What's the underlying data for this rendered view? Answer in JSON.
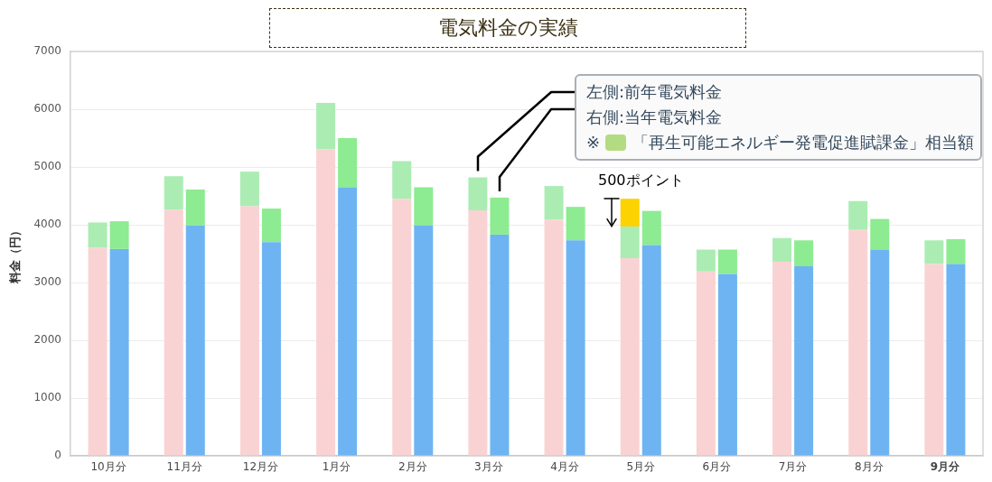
{
  "chart_data": {
    "type": "bar",
    "title": "電気料金の実績",
    "ylabel": "料金（円）",
    "categories": [
      null,
      null,
      null,
      "10月分",
      null,
      null,
      null,
      null,
      null,
      null,
      "11月分",
      null,
      null,
      null,
      null,
      null,
      null,
      "12月分",
      null,
      null,
      null,
      null,
      null,
      null,
      "1月分",
      null,
      null,
      null,
      null,
      null,
      null,
      "2月分",
      null,
      null,
      null,
      null,
      null,
      null,
      "3月分",
      null,
      null,
      null,
      null,
      null,
      null,
      "4月分",
      null,
      null,
      null,
      null,
      null,
      null,
      "5月分",
      null,
      null,
      null,
      null,
      null,
      null,
      "6月分",
      null,
      null,
      null,
      null,
      null,
      null,
      "7月分",
      null,
      null,
      null,
      null,
      null,
      null,
      "8月分",
      null,
      null,
      null,
      null,
      null,
      null,
      "9月分",
      null,
      null,
      null
    ],
    "stacked": true,
    "series": [
      {
        "color": "#f9d3d3",
        "values": [
          null,
          null,
          3600,
          null,
          null,
          null,
          null,
          null,
          null,
          4260,
          null,
          null,
          null,
          null,
          null,
          null,
          4320,
          null,
          null,
          null,
          null,
          null,
          null,
          5310,
          null,
          null,
          null,
          null,
          null,
          null,
          4450,
          null,
          null,
          null,
          null,
          null,
          null,
          4250,
          null,
          null,
          null,
          null,
          null,
          null,
          4090,
          null,
          null,
          null,
          null,
          null,
          null,
          3420,
          null,
          null,
          null,
          null,
          null,
          null,
          3190,
          null,
          null,
          null,
          null,
          null,
          null,
          3360,
          null,
          null,
          null,
          null,
          null,
          null,
          3910,
          null,
          null,
          null,
          null,
          null,
          null,
          3320,
          null,
          null,
          null,
          null
        ]
      },
      {
        "color": "#abecb3",
        "values": [
          null,
          null,
          440,
          null,
          null,
          null,
          null,
          null,
          null,
          580,
          null,
          null,
          null,
          null,
          null,
          null,
          600,
          null,
          null,
          null,
          null,
          null,
          null,
          800,
          null,
          null,
          null,
          null,
          null,
          null,
          650,
          null,
          null,
          null,
          null,
          null,
          null,
          570,
          null,
          null,
          null,
          null,
          null,
          null,
          580,
          null,
          null,
          null,
          null,
          null,
          null,
          550,
          null,
          null,
          null,
          null,
          null,
          null,
          380,
          null,
          null,
          null,
          null,
          null,
          null,
          410,
          null,
          null,
          null,
          null,
          null,
          null,
          500,
          null,
          null,
          null,
          null,
          null,
          null,
          410,
          null,
          null,
          null,
          null
        ]
      },
      {
        "color": "#fcd200",
        "values": [
          null,
          null,
          null,
          null,
          null,
          null,
          null,
          null,
          null,
          null,
          null,
          null,
          null,
          null,
          null,
          null,
          null,
          null,
          null,
          null,
          null,
          null,
          null,
          null,
          null,
          null,
          null,
          null,
          null,
          null,
          null,
          null,
          null,
          null,
          null,
          null,
          null,
          null,
          null,
          null,
          null,
          null,
          null,
          null,
          null,
          null,
          null,
          null,
          null,
          null,
          null,
          480,
          null,
          null,
          null,
          null,
          null,
          null,
          null,
          null,
          null,
          null,
          null,
          null,
          null,
          null,
          null,
          null,
          null,
          null,
          null,
          null,
          null,
          null,
          null,
          null,
          null,
          null,
          null,
          null,
          null,
          null,
          null,
          null
        ]
      },
      {
        "color": "#6eb4f2",
        "values": [
          null,
          null,
          null,
          null,
          3580,
          null,
          null,
          null,
          null,
          null,
          null,
          3990,
          null,
          null,
          null,
          null,
          null,
          null,
          3700,
          null,
          null,
          null,
          null,
          null,
          null,
          4650,
          null,
          null,
          null,
          null,
          null,
          null,
          3990,
          null,
          null,
          null,
          null,
          null,
          null,
          3830,
          null,
          null,
          null,
          null,
          null,
          null,
          3730,
          null,
          null,
          null,
          null,
          null,
          null,
          3650,
          null,
          null,
          null,
          null,
          null,
          null,
          3150,
          null,
          null,
          null,
          null,
          null,
          null,
          3280,
          null,
          null,
          null,
          null,
          null,
          null,
          3570,
          null,
          null,
          null,
          null,
          null,
          null,
          3320,
          null,
          null
        ]
      },
      {
        "color": "#8deb91",
        "values": [
          null,
          null,
          null,
          null,
          480,
          null,
          null,
          null,
          null,
          null,
          null,
          620,
          null,
          null,
          null,
          null,
          null,
          null,
          580,
          null,
          null,
          null,
          null,
          null,
          null,
          850,
          null,
          null,
          null,
          null,
          null,
          null,
          660,
          null,
          null,
          null,
          null,
          null,
          null,
          640,
          null,
          null,
          null,
          null,
          null,
          null,
          580,
          null,
          null,
          null,
          null,
          null,
          null,
          590,
          null,
          null,
          null,
          null,
          null,
          null,
          420,
          null,
          null,
          null,
          null,
          null,
          null,
          450,
          null,
          null,
          null,
          null,
          null,
          null,
          530,
          null,
          null,
          null,
          null,
          null,
          null,
          430,
          null,
          null
        ]
      }
    ],
    "ylim": [
      0,
      7000
    ],
    "yticks": [
      0,
      1000,
      2000,
      3000,
      4000,
      5000,
      6000,
      7000
    ],
    "grid": "y",
    "annotations": [
      "左側:前年電気料金",
      "右側:当年電気料金",
      "※",
      "「再生可能エネルギー発電促進賦課金」相当額",
      {
        "text": "500ポイント",
        "x": "5月分",
        "y": 4450
      }
    ]
  }
}
